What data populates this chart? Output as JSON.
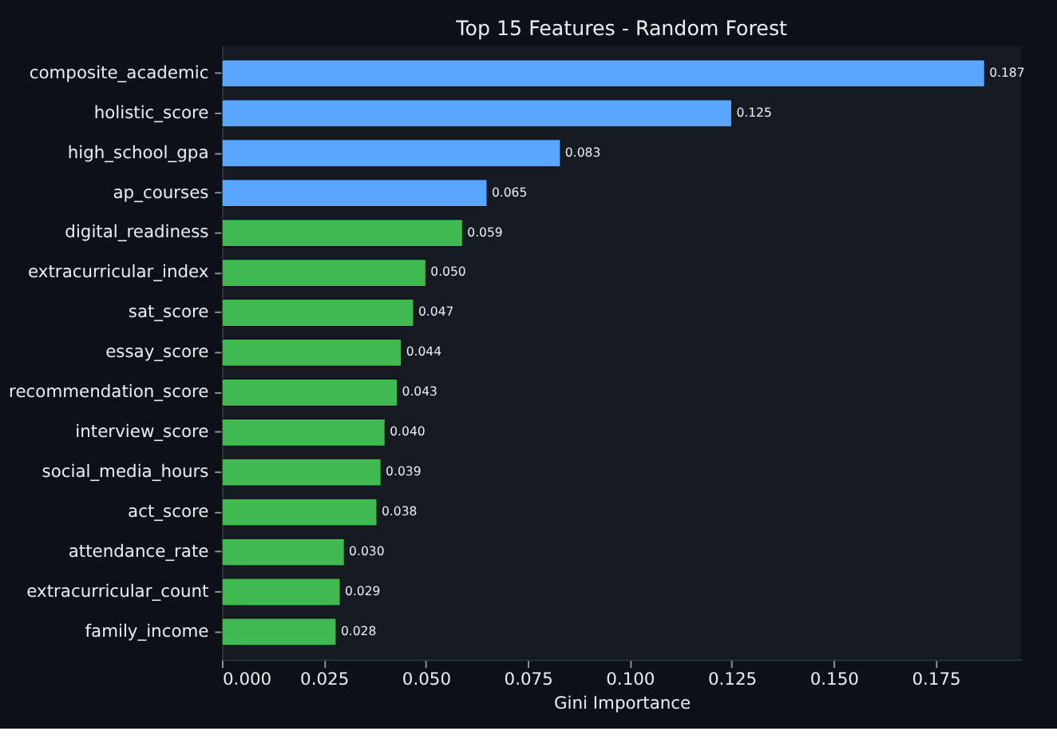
{
  "chart_data": {
    "type": "bar",
    "orientation": "horizontal",
    "title": "Top 15 Features - Random Forest",
    "xlabel": "Gini Importance",
    "categories": [
      "composite_academic",
      "holistic_score",
      "high_school_gpa",
      "ap_courses",
      "digital_readiness",
      "extracurricular_index",
      "sat_score",
      "essay_score",
      "recommendation_score",
      "interview_score",
      "social_media_hours",
      "act_score",
      "attendance_rate",
      "extracurricular_count",
      "family_income"
    ],
    "values": [
      0.187,
      0.125,
      0.083,
      0.065,
      0.059,
      0.05,
      0.047,
      0.044,
      0.043,
      0.04,
      0.039,
      0.038,
      0.03,
      0.029,
      0.028
    ],
    "colors": [
      "#58a6ff",
      "#58a6ff",
      "#58a6ff",
      "#58a6ff",
      "#3fb950",
      "#3fb950",
      "#3fb950",
      "#3fb950",
      "#3fb950",
      "#3fb950",
      "#3fb950",
      "#3fb950",
      "#3fb950",
      "#3fb950",
      "#3fb950"
    ],
    "value_labels": [
      "0.187",
      "0.125",
      "0.083",
      "0.065",
      "0.059",
      "0.050",
      "0.047",
      "0.044",
      "0.043",
      "0.040",
      "0.039",
      "0.038",
      "0.030",
      "0.029",
      "0.028"
    ],
    "grid": false,
    "xlim": [
      0,
      0.196
    ],
    "xticks": [
      {
        "value": 0,
        "label": "0.000"
      },
      0.025,
      {
        "value": 0.05,
        "label": "0.050"
      },
      0.075,
      {
        "value": 0.1,
        "label": "0.100"
      },
      0.125,
      {
        "value": 0.15,
        "label": "0.150"
      },
      0.175
    ]
  }
}
